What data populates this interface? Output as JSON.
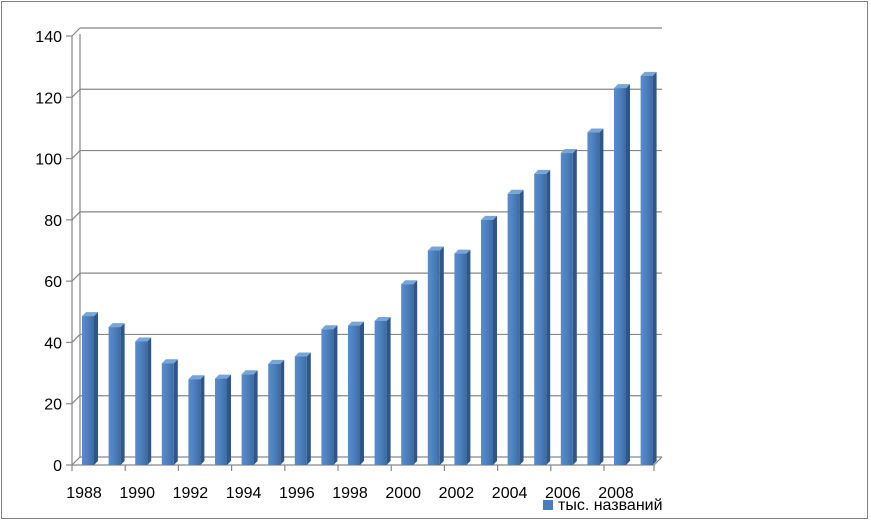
{
  "chart_data": {
    "type": "bar",
    "style": "3d-column",
    "categories": [
      "1988",
      "1989",
      "1990",
      "1991",
      "1992",
      "1993",
      "1994",
      "1995",
      "1996",
      "1997",
      "1998",
      "1999",
      "2000",
      "2001",
      "2002",
      "2003",
      "2004",
      "2005",
      "2006",
      "2007",
      "2008",
      "2009"
    ],
    "x_tick_labels": [
      "1988",
      "1990",
      "1992",
      "1994",
      "1996",
      "1998",
      "2000",
      "2002",
      "2004",
      "2006",
      "2008"
    ],
    "y_tick_labels": [
      "0",
      "20",
      "40",
      "60",
      "80",
      "100",
      "120",
      "140"
    ],
    "series": [
      {
        "name": "тыс. названий",
        "color": "#4a7ebb",
        "values": [
          48.6,
          45.0,
          40.3,
          33.2,
          28.0,
          28.2,
          29.6,
          33.0,
          35.4,
          44.3,
          45.5,
          47.0,
          59.0,
          70.0,
          69.0,
          80.0,
          88.5,
          95.0,
          101.8,
          108.5,
          123.0,
          127.0
        ]
      }
    ],
    "ylim": [
      0,
      140
    ],
    "y_step": 20,
    "grid": true,
    "legend_position": "bottom-right",
    "title": "",
    "xlabel": "",
    "ylabel": ""
  }
}
